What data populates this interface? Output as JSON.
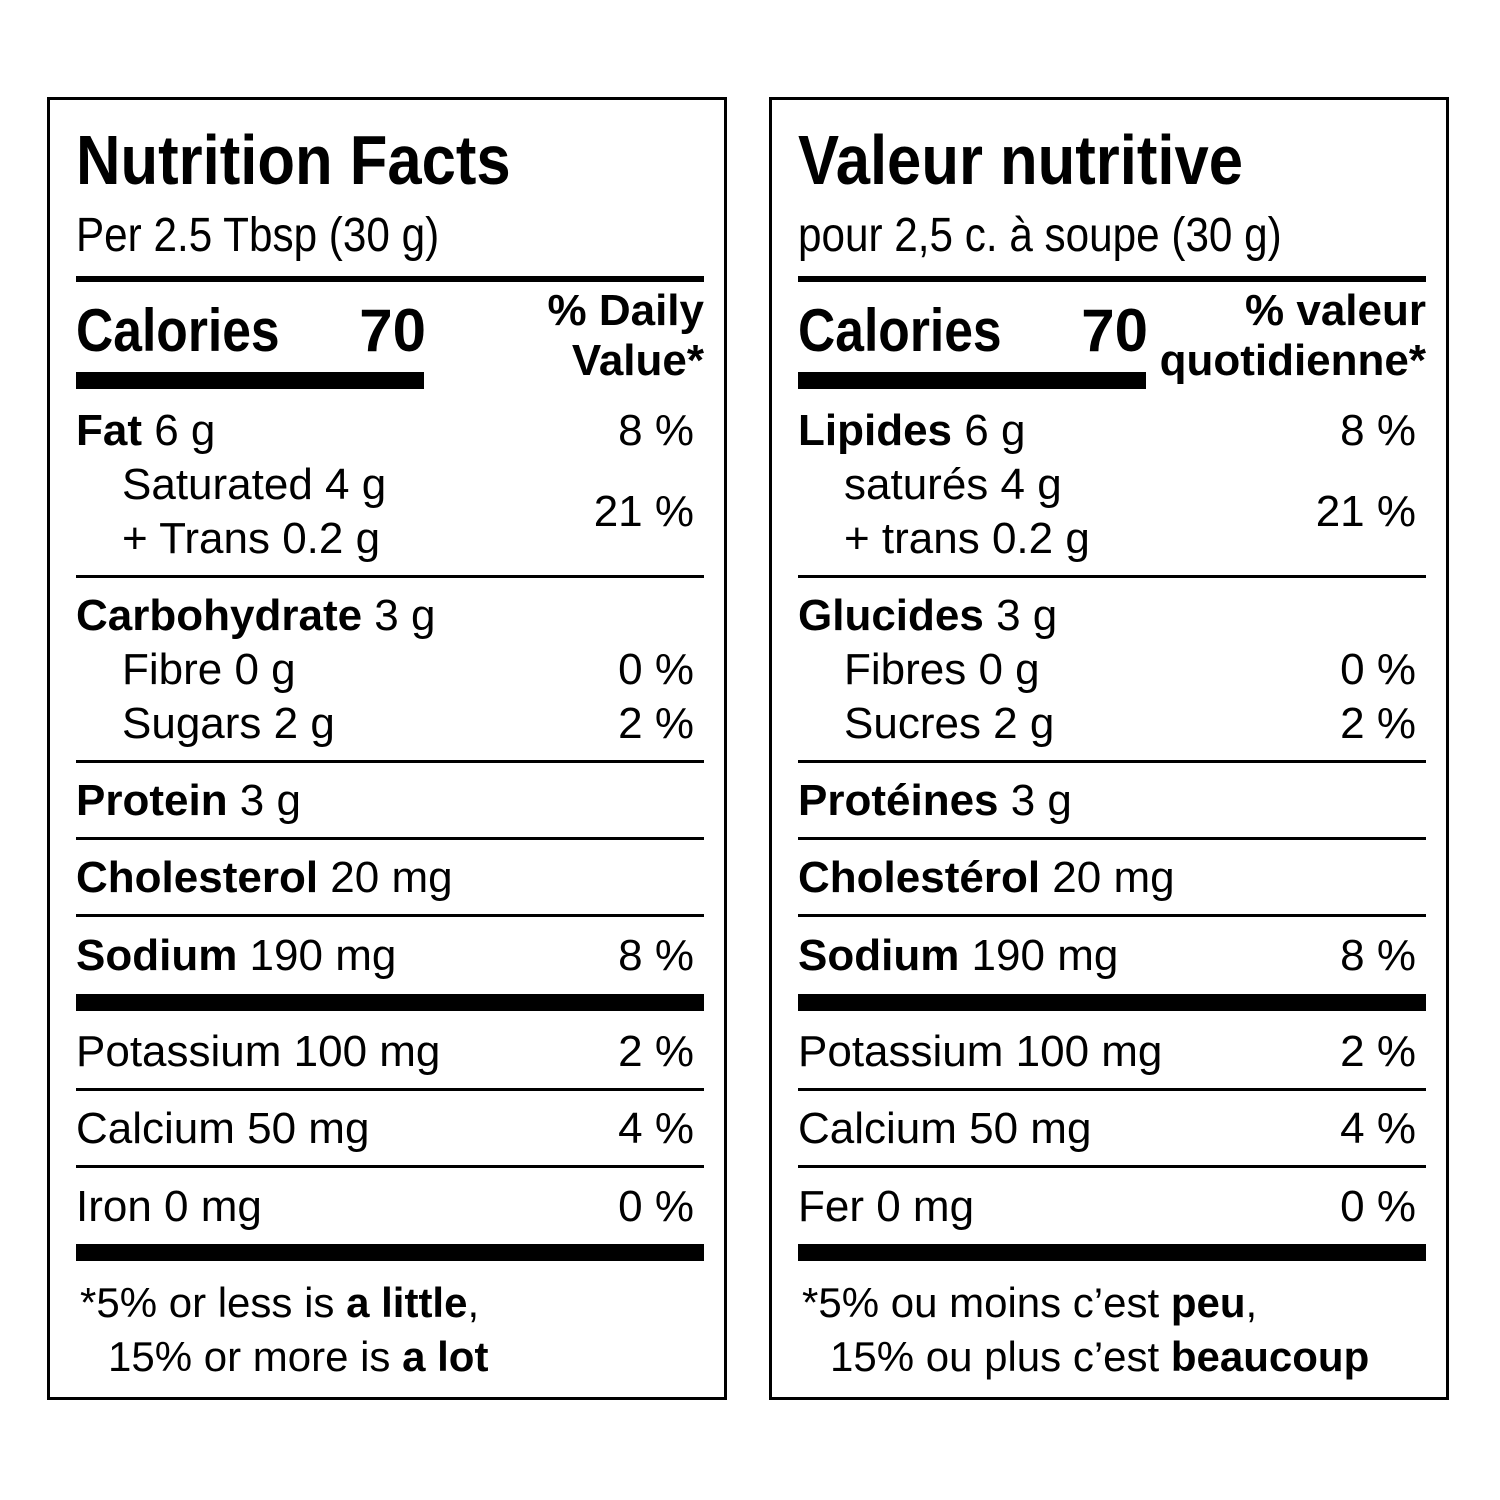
{
  "english": {
    "title": "Nutrition Facts",
    "serving": "Per 2.5 Tbsp (30 g)",
    "calories_label": "Calories",
    "calories_value": "70",
    "dv_line1": "% Daily",
    "dv_line2": "Value*",
    "fat_label": "Fat",
    "fat_amount": " 6 g",
    "fat_pct": "8 %",
    "saturated": "Saturated 4 g",
    "trans": "+ Trans 0.2 g",
    "sat_trans_pct": "21 %",
    "carb_label": "Carbohydrate",
    "carb_amount": " 3 g",
    "fibre": "Fibre 0 g",
    "fibre_pct": "0 %",
    "sugars": "Sugars 2 g",
    "sugars_pct": "2 %",
    "protein_label": "Protein",
    "protein_amount": " 3 g",
    "cholesterol_label": "Cholesterol",
    "cholesterol_amount": " 20 mg",
    "sodium_label": "Sodium",
    "sodium_amount": " 190 mg",
    "sodium_pct": "8 %",
    "potassium": "Potassium 100 mg",
    "potassium_pct": "2 %",
    "calcium": "Calcium 50 mg",
    "calcium_pct": "4 %",
    "iron": "Iron 0 mg",
    "iron_pct": "0 %",
    "foot1_pre": "*5% or less is ",
    "foot1_bold": "a little",
    "foot1_post": ",",
    "foot2_pre": "15% or more is ",
    "foot2_bold": "a lot"
  },
  "french": {
    "title": "Valeur nutritive",
    "serving": "pour 2,5 c. à soupe (30 g)",
    "calories_label": "Calories",
    "calories_value": "70",
    "dv_line1": "% valeur",
    "dv_line2": "quotidienne*",
    "fat_label": "Lipides",
    "fat_amount": " 6 g",
    "fat_pct": "8 %",
    "saturated": "saturés 4 g",
    "trans": "+ trans 0.2 g",
    "sat_trans_pct": "21 %",
    "carb_label": "Glucides",
    "carb_amount": " 3 g",
    "fibre": "Fibres 0 g",
    "fibre_pct": "0 %",
    "sugars": "Sucres 2 g",
    "sugars_pct": "2 %",
    "protein_label": "Protéines",
    "protein_amount": " 3 g",
    "cholesterol_label": "Cholestérol",
    "cholesterol_amount": " 20 mg",
    "sodium_label": "Sodium",
    "sodium_amount": " 190 mg",
    "sodium_pct": "8 %",
    "potassium": "Potassium 100 mg",
    "potassium_pct": "2 %",
    "calcium": "Calcium 50 mg",
    "calcium_pct": "4 %",
    "iron": "Fer 0 mg",
    "iron_pct": "0 %",
    "foot1_pre": "*5% ou moins c’est ",
    "foot1_bold": "peu",
    "foot1_post": ",",
    "foot2_pre": "15% ou plus c’est ",
    "foot2_bold": "beaucoup"
  }
}
